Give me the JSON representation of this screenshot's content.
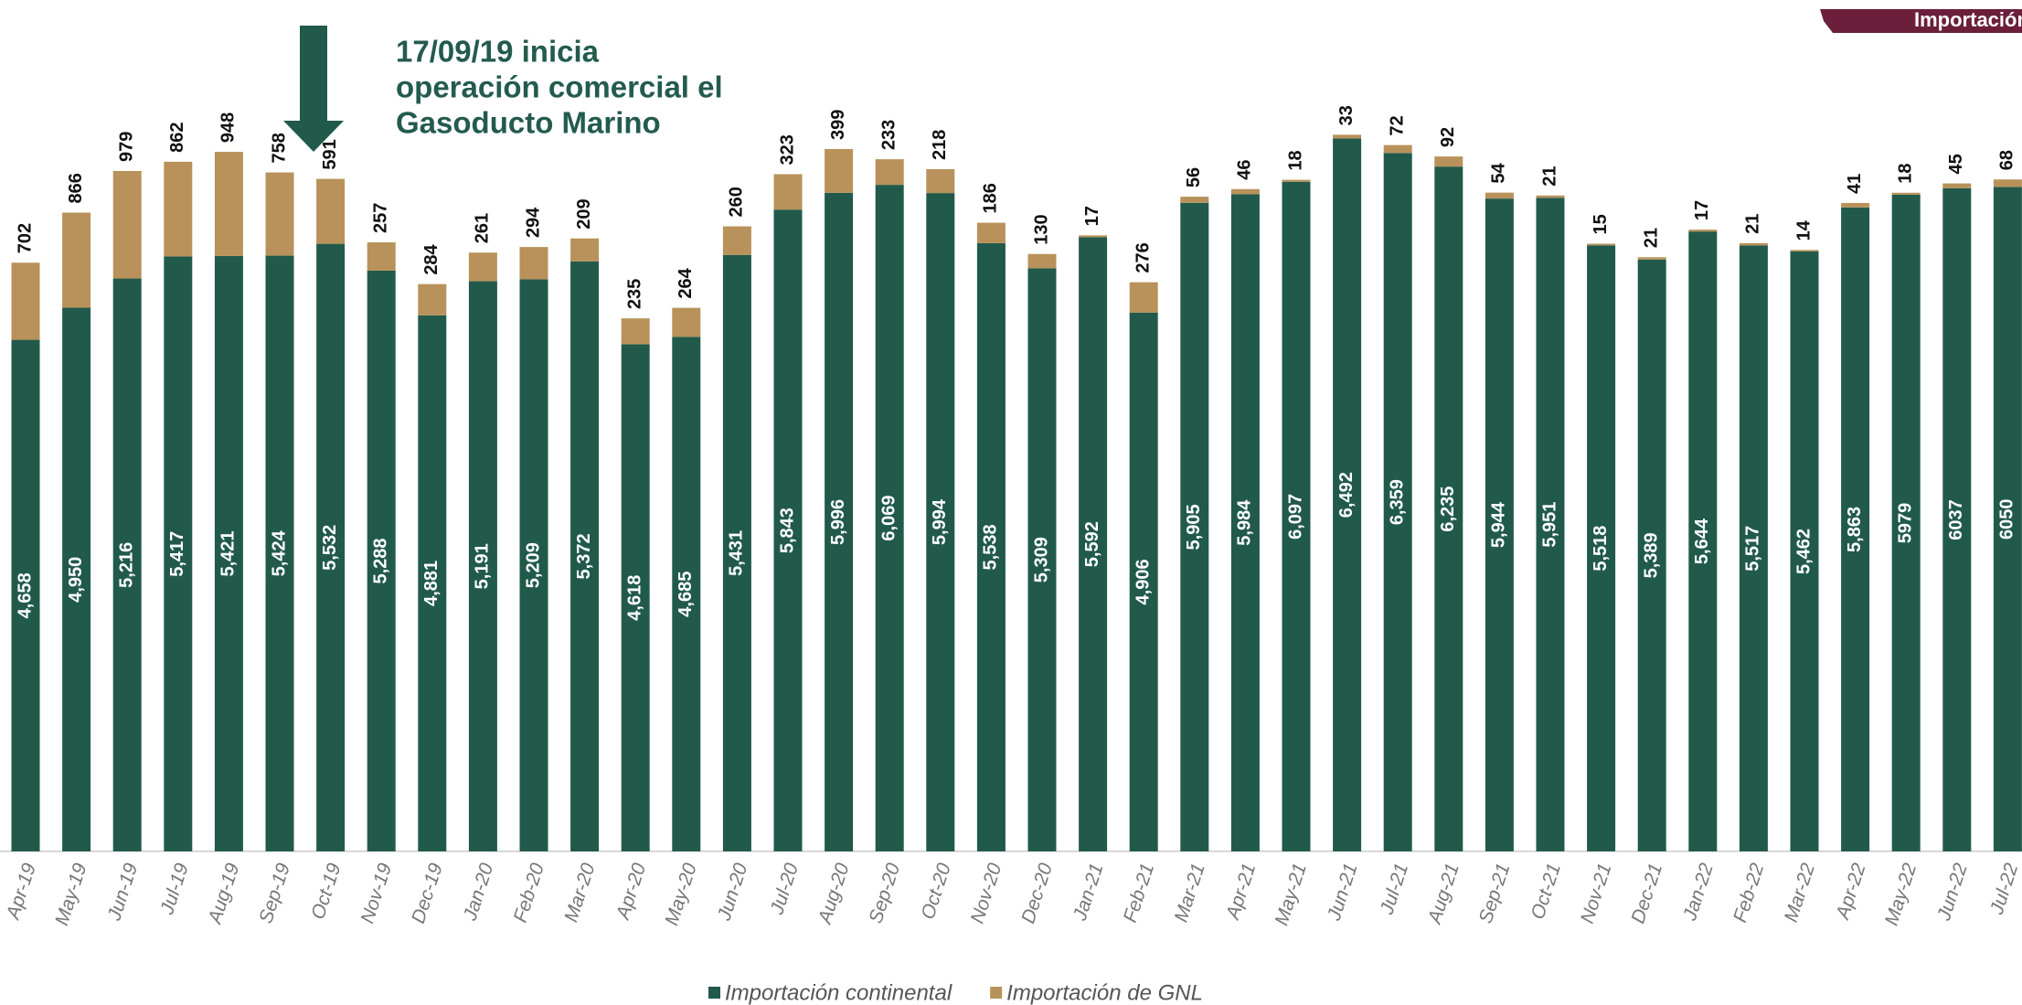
{
  "chart_data": {
    "type": "stacked_bar",
    "tag": "Importación",
    "annotation": [
      "17/09/19 inicia",
      "operación comercial el",
      "Gasoducto Marino"
    ],
    "categories": [
      "Apr-19",
      "May-19",
      "Jun-19",
      "Jul-19",
      "Aug-19",
      "Sep-19",
      "Oct-19",
      "Nov-19",
      "Dec-19",
      "Jan-20",
      "Feb-20",
      "Mar-20",
      "Apr-20",
      "May-20",
      "Jun-20",
      "Jul-20",
      "Aug-20",
      "Sep-20",
      "Oct-20",
      "Nov-20",
      "Dec-20",
      "Jan-21",
      "Feb-21",
      "Mar-21",
      "Apr-21",
      "May-21",
      "Jun-21",
      "Jul-21",
      "Aug-21",
      "Sep-21",
      "Oct-21",
      "Nov-21",
      "Dec-21",
      "Jan-22",
      "Feb-22",
      "Mar-22",
      "Apr-22",
      "May-22",
      "Jun-22",
      "Jul-22"
    ],
    "series": [
      {
        "name": "Importación continental",
        "color": "#215a4b",
        "values": [
          4658,
          4950,
          5216,
          5417,
          5421,
          5424,
          5532,
          5288,
          4881,
          5191,
          5209,
          5372,
          4618,
          4685,
          5431,
          5843,
          5996,
          6069,
          5994,
          5538,
          5309,
          5592,
          4906,
          5905,
          5984,
          6097,
          6492,
          6359,
          6235,
          5944,
          5951,
          5518,
          5389,
          5644,
          5517,
          5462,
          5863,
          5979,
          6037,
          6050
        ],
        "value_labels": [
          "4,658",
          "4,950",
          "5,216",
          "5,417",
          "5,421",
          "5,424",
          "5,532",
          "5,288",
          "4,881",
          "5,191",
          "5,209",
          "5,372",
          "4,618",
          "4,685",
          "5,431",
          "5,843",
          "5,996",
          "6,069",
          "5,994",
          "5,538",
          "5,309",
          "5,592",
          "4,906",
          "5,905",
          "5,984",
          "6,097",
          "6,492",
          "6,359",
          "6,235",
          "5,944",
          "5,951",
          "5,518",
          "5,389",
          "5,644",
          "5,517",
          "5,462",
          "5,863",
          "5979",
          "6037",
          "6050"
        ]
      },
      {
        "name": "Importación de GNL",
        "color": "#b8925a",
        "values": [
          702,
          866,
          979,
          862,
          948,
          758,
          591,
          257,
          284,
          261,
          294,
          209,
          235,
          264,
          260,
          323,
          399,
          233,
          218,
          186,
          130,
          17,
          276,
          56,
          46,
          18,
          33,
          72,
          92,
          54,
          21,
          15,
          21,
          17,
          21,
          14,
          41,
          18,
          45,
          68
        ]
      }
    ]
  }
}
